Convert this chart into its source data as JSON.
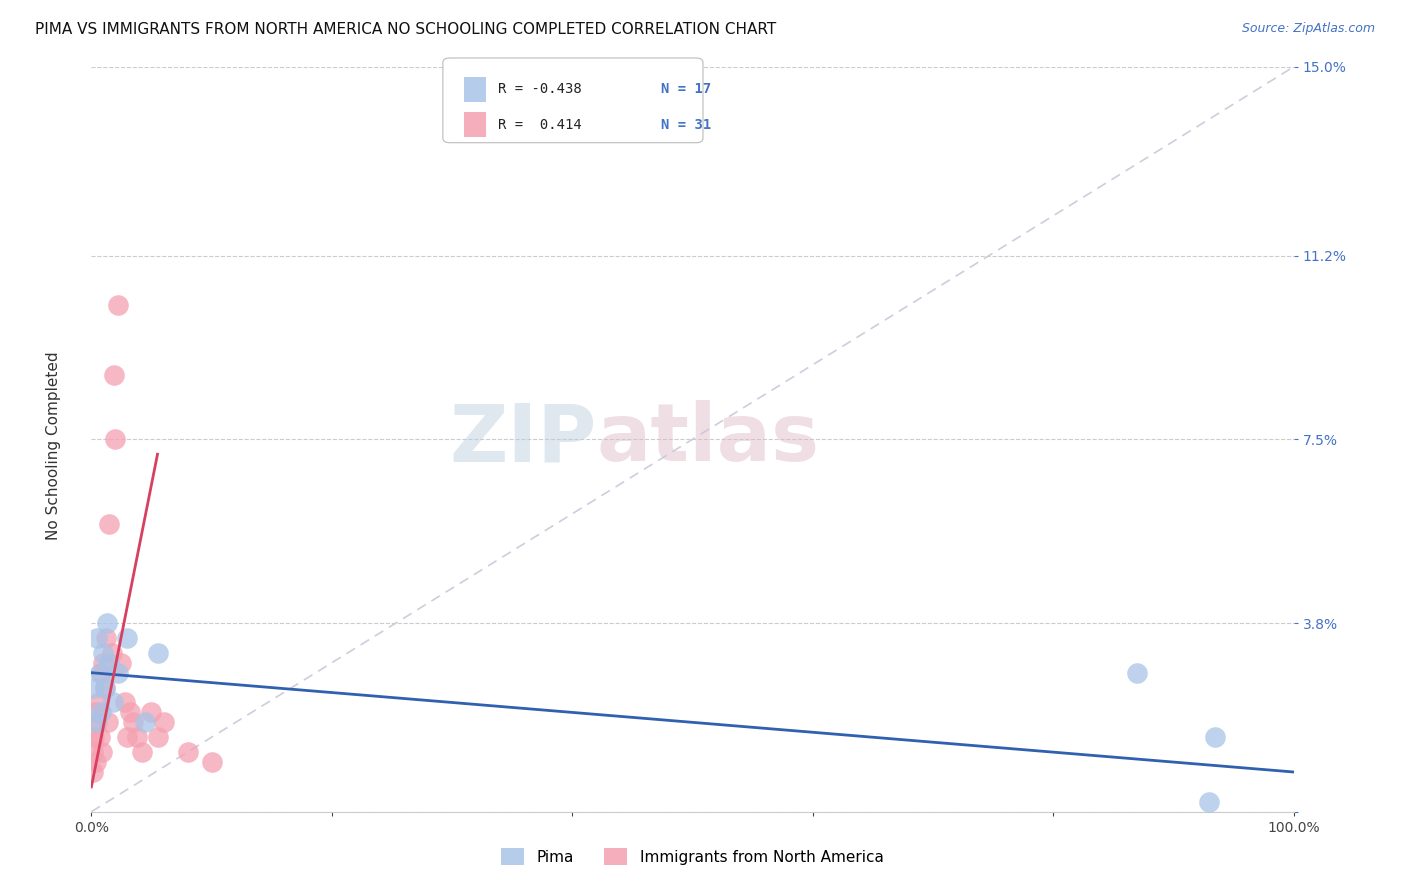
{
  "title": "PIMA VS IMMIGRANTS FROM NORTH AMERICA NO SCHOOLING COMPLETED CORRELATION CHART",
  "source": "Source: ZipAtlas.com",
  "ylabel": "No Schooling Completed",
  "xlim": [
    0,
    100
  ],
  "ylim": [
    0,
    15
  ],
  "xtick_positions": [
    0,
    20,
    40,
    60,
    80,
    100
  ],
  "xtick_labels": [
    "0.0%",
    "",
    "",
    "",
    "",
    "100.0%"
  ],
  "ytick_vals": [
    0,
    3.8,
    7.5,
    11.2,
    15.0
  ],
  "ytick_labels": [
    "",
    "3.8%",
    "7.5%",
    "11.2%",
    "15.0%"
  ],
  "legend_r_pima": "-0.438",
  "legend_n_pima": "17",
  "legend_r_immigrants": "0.414",
  "legend_n_immigrants": "31",
  "pima_color": "#a8c4e8",
  "immigrants_color": "#f4a0b0",
  "pima_line_color": "#3060b0",
  "immigrants_line_color": "#d84060",
  "diagonal_color": "#c8c8d8",
  "title_fontsize": 11,
  "source_fontsize": 9,
  "pima_x": [
    0.2,
    0.4,
    0.5,
    0.7,
    0.8,
    1.0,
    1.1,
    1.3,
    1.5,
    1.8,
    2.2,
    3.0,
    4.5,
    5.5,
    87.0,
    93.0,
    93.5
  ],
  "pima_y": [
    2.5,
    1.8,
    3.5,
    2.8,
    2.0,
    3.2,
    2.5,
    3.8,
    3.0,
    2.2,
    2.8,
    3.5,
    1.8,
    3.2,
    2.8,
    0.2,
    1.5
  ],
  "immigrants_x": [
    0.1,
    0.15,
    0.2,
    0.3,
    0.4,
    0.5,
    0.6,
    0.7,
    0.8,
    0.9,
    1.0,
    1.1,
    1.2,
    1.4,
    1.5,
    1.7,
    1.9,
    2.0,
    2.2,
    2.5,
    2.8,
    3.0,
    3.2,
    3.5,
    3.8,
    4.2,
    5.0,
    5.5,
    6.0,
    8.0,
    10.0
  ],
  "immigrants_y": [
    0.8,
    1.2,
    1.5,
    2.0,
    1.0,
    1.8,
    2.2,
    1.5,
    2.8,
    1.2,
    3.0,
    2.5,
    3.5,
    1.8,
    5.8,
    3.2,
    8.8,
    7.5,
    10.2,
    3.0,
    2.2,
    1.5,
    2.0,
    1.8,
    1.5,
    1.2,
    2.0,
    1.5,
    1.8,
    1.2,
    1.0
  ],
  "pima_line_x0": 0,
  "pima_line_x1": 100,
  "pima_line_y0": 2.8,
  "pima_line_y1": 0.8,
  "imm_line_x0": 0,
  "imm_line_x1": 5.5,
  "imm_line_y0": 0.5,
  "imm_line_y1": 7.2
}
